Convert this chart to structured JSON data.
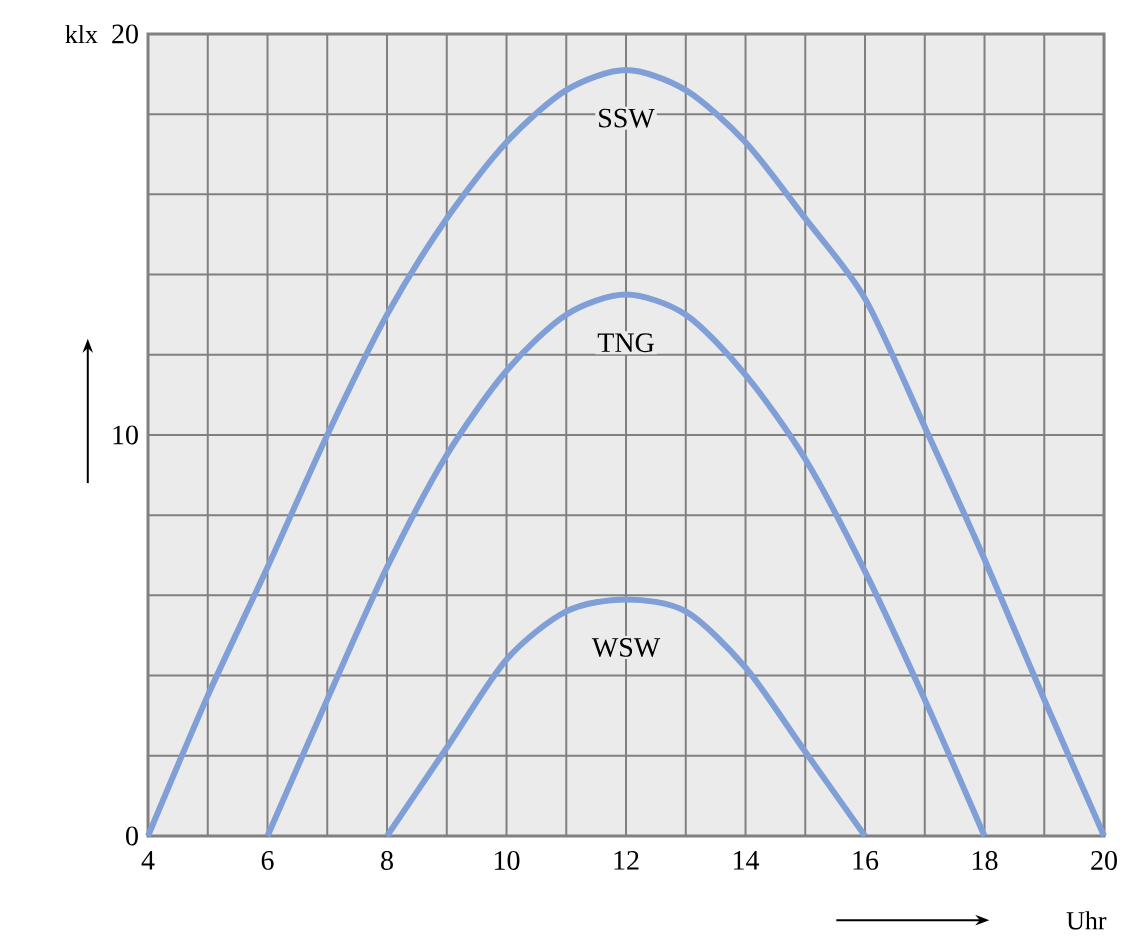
{
  "chart_data": {
    "type": "line",
    "xlabel": "Uhr",
    "ylabel": "klx",
    "xlim": [
      4,
      20
    ],
    "ylim": [
      0,
      20
    ],
    "xticks": [
      4,
      {
        "value": 5,
        "label": null
      },
      6,
      {
        "value": 7,
        "label": null
      },
      8,
      {
        "value": 9,
        "label": null
      },
      10,
      {
        "value": 11,
        "label": null
      },
      12,
      {
        "value": 13,
        "label": null
      },
      14,
      {
        "value": 15,
        "label": null
      },
      16,
      {
        "value": 17,
        "label": null
      },
      18,
      {
        "value": 19,
        "label": null
      },
      20
    ],
    "yticks": [
      0,
      {
        "value": 2,
        "label": null
      },
      {
        "value": 4,
        "label": null
      },
      {
        "value": 6,
        "label": null
      },
      {
        "value": 8,
        "label": null
      },
      10,
      {
        "value": 12,
        "label": null
      },
      {
        "value": 14,
        "label": null
      },
      {
        "value": 16,
        "label": null
      },
      {
        "value": 18,
        "label": null
      },
      20
    ],
    "grid": true,
    "marker": "none",
    "line_style": "solid",
    "x": [
      4,
      5,
      6,
      7,
      8,
      9,
      10,
      11,
      12,
      13,
      14,
      15,
      16,
      17,
      18,
      19,
      20
    ],
    "series": [
      {
        "name": "SSW",
        "color": "#7f9fd6",
        "values": [
          0,
          3.5,
          6.7,
          10.0,
          13.0,
          15.4,
          17.3,
          18.6,
          19.1,
          18.6,
          17.3,
          15.4,
          13.4,
          10.2,
          6.9,
          3.4,
          0
        ]
      },
      {
        "name": "TNG",
        "color": "#7f9fd6",
        "values": [
          null,
          null,
          0,
          3.4,
          6.7,
          9.5,
          11.6,
          13.0,
          13.5,
          13.0,
          11.5,
          9.4,
          6.6,
          3.4,
          0,
          null,
          null
        ]
      },
      {
        "name": "WSW",
        "color": "#7f9fd6",
        "values": [
          null,
          null,
          null,
          null,
          0,
          2.2,
          4.4,
          5.6,
          5.9,
          5.6,
          4.2,
          2.1,
          0,
          null,
          null,
          null,
          null
        ]
      }
    ]
  }
}
